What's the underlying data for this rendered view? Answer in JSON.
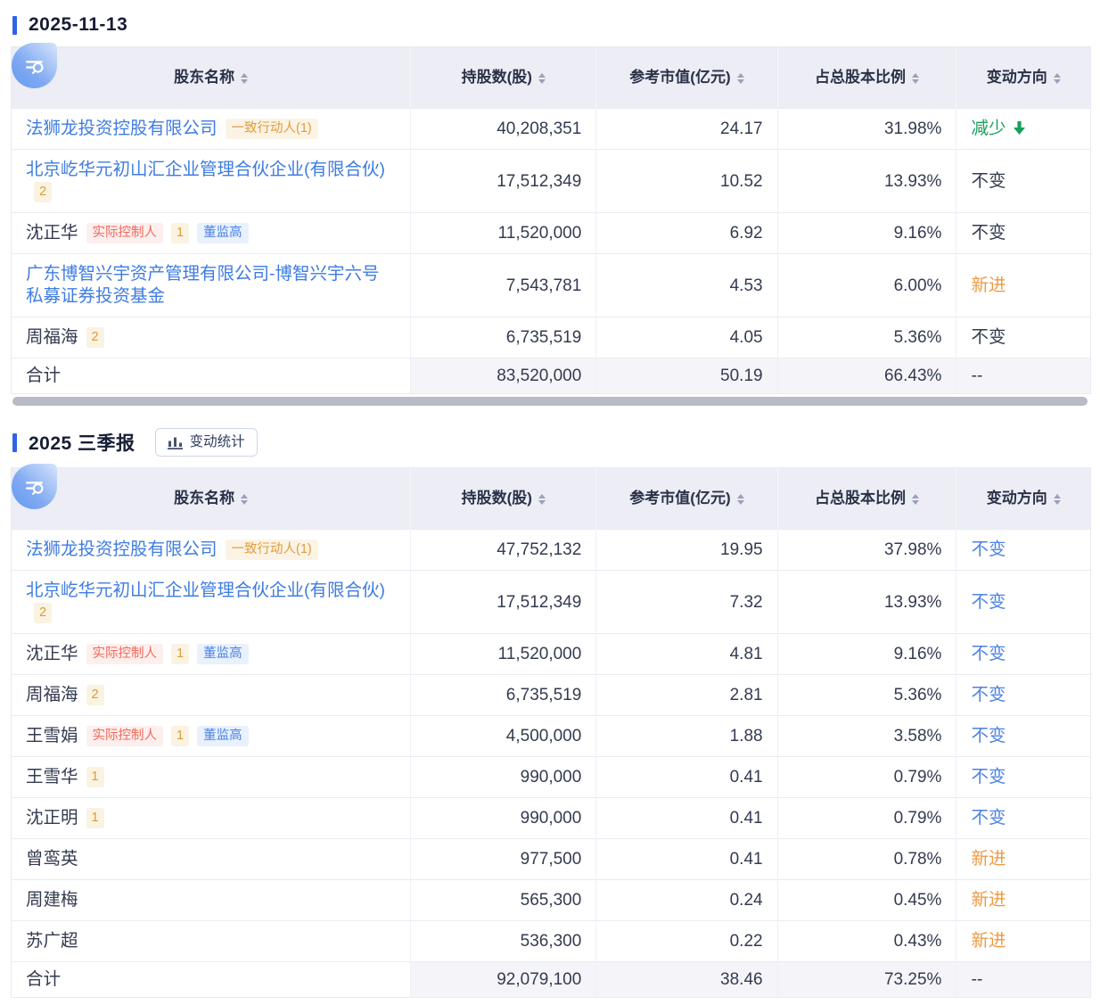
{
  "colors": {
    "accent_blue": "#2e62e9",
    "link_blue": "#3e7ce2",
    "header_bg": "#ecedf5",
    "tag_orange_text": "#e29b3d",
    "tag_red_text": "#f0685a",
    "tag_blue_text": "#4c82e6",
    "decrease_green": "#17a05c",
    "new_orange": "#f09a41",
    "scrollbar_thumb": "#b8bac5"
  },
  "sections": [
    {
      "title": "2025-11-13",
      "has_scrollbar": true,
      "table": {
        "columns": [
          {
            "key": "name",
            "label": "股东名称",
            "sortable": true
          },
          {
            "key": "shares",
            "label": "持股数(股)",
            "sortable": true
          },
          {
            "key": "value",
            "label": "参考市值(亿元)",
            "sortable": true
          },
          {
            "key": "ratio",
            "label": "占总股本比例",
            "sortable": true
          },
          {
            "key": "change",
            "label": "变动方向",
            "sortable": true
          }
        ],
        "rows": [
          {
            "name": "法狮龙投资控股有限公司",
            "link": true,
            "tags": [
              {
                "text": "一致行动人(1)",
                "type": "orange"
              }
            ],
            "shares": "40,208,351",
            "value": "24.17",
            "ratio": "31.98%",
            "change": {
              "text": "减少",
              "style": "decrease",
              "arrow": true
            }
          },
          {
            "name": "北京屹华元初山汇企业管理合伙企业(有限合伙)",
            "link": true,
            "tags": [
              {
                "text": "2",
                "type": "num"
              }
            ],
            "shares": "17,512,349",
            "value": "10.52",
            "ratio": "13.93%",
            "change": {
              "text": "不变",
              "style": "unchanged"
            }
          },
          {
            "name": "沈正华",
            "link": false,
            "tags": [
              {
                "text": "实际控制人",
                "type": "red"
              },
              {
                "text": "1",
                "type": "num"
              },
              {
                "text": "董监高",
                "type": "blue"
              }
            ],
            "shares": "11,520,000",
            "value": "6.92",
            "ratio": "9.16%",
            "change": {
              "text": "不变",
              "style": "unchanged"
            }
          },
          {
            "name": "广东博智兴宇资产管理有限公司-博智兴宇六号私募证券投资基金",
            "link": true,
            "tags": [],
            "shares": "7,543,781",
            "value": "4.53",
            "ratio": "6.00%",
            "change": {
              "text": "新进",
              "style": "new"
            }
          },
          {
            "name": "周福海",
            "link": false,
            "tags": [
              {
                "text": "2",
                "type": "num"
              }
            ],
            "shares": "6,735,519",
            "value": "4.05",
            "ratio": "5.36%",
            "change": {
              "text": "不变",
              "style": "unchanged"
            }
          },
          {
            "name": "合计",
            "total": true,
            "link": false,
            "tags": [],
            "shares": "83,520,000",
            "value": "50.19",
            "ratio": "66.43%",
            "change": {
              "text": "--",
              "style": "none"
            }
          }
        ]
      }
    },
    {
      "title": "2025 三季报",
      "button": {
        "label": "变动统计",
        "icon": "bar-chart-icon"
      },
      "has_scrollbar": false,
      "table": {
        "columns": [
          {
            "key": "name",
            "label": "股东名称",
            "sortable": true
          },
          {
            "key": "shares",
            "label": "持股数(股)",
            "sortable": true
          },
          {
            "key": "value",
            "label": "参考市值(亿元)",
            "sortable": true
          },
          {
            "key": "ratio",
            "label": "占总股本比例",
            "sortable": true
          },
          {
            "key": "change",
            "label": "变动方向",
            "sortable": true
          }
        ],
        "rows": [
          {
            "name": "法狮龙投资控股有限公司",
            "link": true,
            "tags": [
              {
                "text": "一致行动人(1)",
                "type": "orange"
              }
            ],
            "shares": "47,752,132",
            "value": "19.95",
            "ratio": "37.98%",
            "change": {
              "text": "不变",
              "style": "unchanged-link"
            }
          },
          {
            "name": "北京屹华元初山汇企业管理合伙企业(有限合伙)",
            "link": true,
            "tags": [
              {
                "text": "2",
                "type": "num"
              }
            ],
            "shares": "17,512,349",
            "value": "7.32",
            "ratio": "13.93%",
            "change": {
              "text": "不变",
              "style": "unchanged-link"
            }
          },
          {
            "name": "沈正华",
            "link": false,
            "tags": [
              {
                "text": "实际控制人",
                "type": "red"
              },
              {
                "text": "1",
                "type": "num"
              },
              {
                "text": "董监高",
                "type": "blue"
              }
            ],
            "shares": "11,520,000",
            "value": "4.81",
            "ratio": "9.16%",
            "change": {
              "text": "不变",
              "style": "unchanged-link"
            }
          },
          {
            "name": "周福海",
            "link": false,
            "tags": [
              {
                "text": "2",
                "type": "num"
              }
            ],
            "shares": "6,735,519",
            "value": "2.81",
            "ratio": "5.36%",
            "change": {
              "text": "不变",
              "style": "unchanged-link"
            }
          },
          {
            "name": "王雪娟",
            "link": false,
            "tags": [
              {
                "text": "实际控制人",
                "type": "red"
              },
              {
                "text": "1",
                "type": "num"
              },
              {
                "text": "董监高",
                "type": "blue"
              }
            ],
            "shares": "4,500,000",
            "value": "1.88",
            "ratio": "3.58%",
            "change": {
              "text": "不变",
              "style": "unchanged-link"
            }
          },
          {
            "name": "王雪华",
            "link": false,
            "tags": [
              {
                "text": "1",
                "type": "num"
              }
            ],
            "shares": "990,000",
            "value": "0.41",
            "ratio": "0.79%",
            "change": {
              "text": "不变",
              "style": "unchanged-link"
            }
          },
          {
            "name": "沈正明",
            "link": false,
            "tags": [
              {
                "text": "1",
                "type": "num"
              }
            ],
            "shares": "990,000",
            "value": "0.41",
            "ratio": "0.79%",
            "change": {
              "text": "不变",
              "style": "unchanged-link"
            }
          },
          {
            "name": "曾鸾英",
            "link": false,
            "tags": [],
            "shares": "977,500",
            "value": "0.41",
            "ratio": "0.78%",
            "change": {
              "text": "新进",
              "style": "new"
            }
          },
          {
            "name": "周建梅",
            "link": false,
            "tags": [],
            "shares": "565,300",
            "value": "0.24",
            "ratio": "0.45%",
            "change": {
              "text": "新进",
              "style": "new"
            }
          },
          {
            "name": "苏广超",
            "link": false,
            "tags": [],
            "shares": "536,300",
            "value": "0.22",
            "ratio": "0.43%",
            "change": {
              "text": "新进",
              "style": "new"
            }
          },
          {
            "name": "合计",
            "total": true,
            "link": false,
            "tags": [],
            "shares": "92,079,100",
            "value": "38.46",
            "ratio": "73.25%",
            "change": {
              "text": "--",
              "style": "none"
            }
          }
        ]
      }
    }
  ]
}
